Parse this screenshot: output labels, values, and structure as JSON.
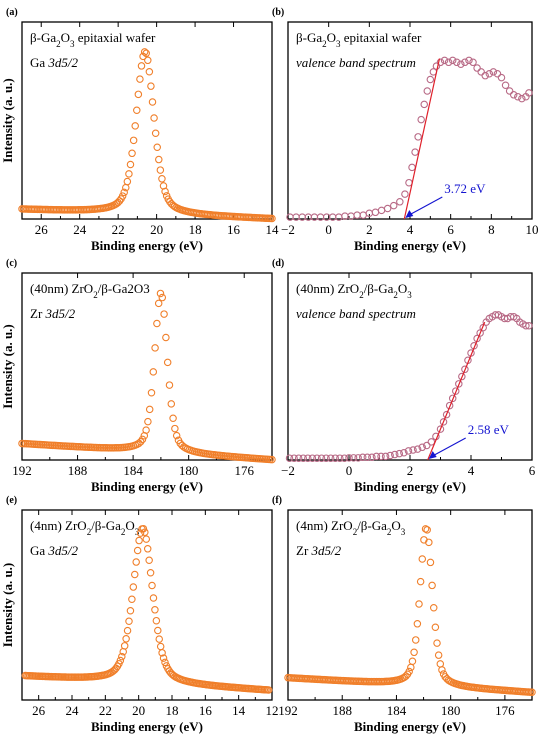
{
  "chart_data": [
    {
      "id": "a",
      "type": "scatter",
      "panel_label": "(a)",
      "annotations": [
        {
          "kind": "formula",
          "pre": "β-Ga",
          "sub1": "2",
          "mid": "O",
          "sub2": "3",
          "post": " epitaxial wafer",
          "row": 0,
          "italic": false
        },
        {
          "kind": "plain",
          "text": "Ga ",
          "italic_text": "3d5/2",
          "row": 1
        }
      ],
      "xlabel": "Binding energy (eV)",
      "ylabel": "Intensity (a. u.)",
      "x_reversed": true,
      "xlim": [
        27,
        14
      ],
      "xticks": [
        26,
        24,
        22,
        20,
        18,
        16,
        14
      ],
      "ylim": [
        0,
        1
      ],
      "marker_color": "#f07f2a",
      "marker_fill": "none",
      "peak": {
        "center": 20.6,
        "height": 0.85,
        "width": 0.55
      },
      "baseline": {
        "start_x": 27,
        "start_y": 0.05,
        "end_x": 14,
        "end_y": 0.0
      },
      "x_range": [
        27,
        14
      ],
      "n_points": 160
    },
    {
      "id": "b",
      "type": "scatter",
      "panel_label": "(b)",
      "annotations": [
        {
          "kind": "formula",
          "pre": "β-Ga",
          "sub1": "2",
          "mid": "O",
          "sub2": "3",
          "post": " epitaxial wafer",
          "row": 0,
          "italic": false
        },
        {
          "kind": "italic",
          "text": "valence band spectrum",
          "row": 1
        }
      ],
      "xlabel": "Binding energy (eV)",
      "ylabel": "",
      "x_reversed": false,
      "xlim": [
        -2,
        10
      ],
      "xticks": [
        -2,
        0,
        2,
        4,
        6,
        8,
        10
      ],
      "ylim": [
        0,
        1
      ],
      "marker_color": "#b86a86",
      "marker_fill": "none",
      "vb": {
        "onset": 3.72,
        "top_x": 5.6,
        "plateau": 0.83,
        "max_x": 9.8
      },
      "points": [
        [
          -1.9,
          0.01
        ],
        [
          -1.6,
          0.01
        ],
        [
          -1.3,
          0.01
        ],
        [
          -1.0,
          0.01
        ],
        [
          -0.7,
          0.01
        ],
        [
          -0.4,
          0.01
        ],
        [
          -0.1,
          0.01
        ],
        [
          0.2,
          0.01
        ],
        [
          0.5,
          0.01
        ],
        [
          0.8,
          0.015
        ],
        [
          1.1,
          0.015
        ],
        [
          1.4,
          0.02
        ],
        [
          1.7,
          0.02
        ],
        [
          2.0,
          0.03
        ],
        [
          2.3,
          0.035
        ],
        [
          2.6,
          0.045
        ],
        [
          2.9,
          0.055
        ],
        [
          3.2,
          0.07
        ],
        [
          3.5,
          0.09
        ],
        [
          3.75,
          0.13
        ],
        [
          3.95,
          0.19
        ],
        [
          4.1,
          0.27
        ],
        [
          4.25,
          0.35
        ],
        [
          4.4,
          0.43
        ],
        [
          4.55,
          0.52
        ],
        [
          4.7,
          0.6
        ],
        [
          4.85,
          0.67
        ],
        [
          5.0,
          0.73
        ],
        [
          5.15,
          0.77
        ],
        [
          5.3,
          0.8
        ],
        [
          5.5,
          0.82
        ],
        [
          5.7,
          0.83
        ],
        [
          5.9,
          0.82
        ],
        [
          6.1,
          0.83
        ],
        [
          6.3,
          0.82
        ],
        [
          6.5,
          0.81
        ],
        [
          6.7,
          0.82
        ],
        [
          6.9,
          0.83
        ],
        [
          7.1,
          0.82
        ],
        [
          7.3,
          0.79
        ],
        [
          7.5,
          0.77
        ],
        [
          7.7,
          0.75
        ],
        [
          7.9,
          0.76
        ],
        [
          8.1,
          0.77
        ],
        [
          8.3,
          0.76
        ],
        [
          8.5,
          0.74
        ],
        [
          8.7,
          0.7
        ],
        [
          8.9,
          0.67
        ],
        [
          9.1,
          0.65
        ],
        [
          9.3,
          0.64
        ],
        [
          9.5,
          0.63
        ],
        [
          9.7,
          0.64
        ],
        [
          9.85,
          0.66
        ]
      ],
      "fit_line": {
        "x1": 3.72,
        "y1": 0.0,
        "x2": 5.45,
        "y2": 0.84
      },
      "callout": {
        "text": "3.72 eV",
        "target_x": 3.72,
        "target_y": 0.0
      }
    },
    {
      "id": "c",
      "type": "scatter",
      "panel_label": "(c)",
      "annotations": [
        {
          "kind": "plain",
          "text": "(40nm) ZrO",
          "sub": "2",
          "post": "/β-Ga2O3",
          "row": 0
        },
        {
          "kind": "italic_prefix",
          "text": "Zr ",
          "italic_text": "3d5/2",
          "row": 1
        }
      ],
      "xlabel": "Binding energy (eV)",
      "ylabel": "Intensity (a. u.)",
      "x_reversed": true,
      "xlim": [
        192,
        174
      ],
      "xticks": [
        192,
        188,
        184,
        180,
        176
      ],
      "ylim": [
        0,
        1
      ],
      "marker_color": "#f07f2a",
      "marker_fill": "none",
      "peak": {
        "center": 182.0,
        "height": 0.88,
        "width": 0.55
      },
      "baseline": {
        "start_x": 192,
        "start_y": 0.09,
        "end_x": 174,
        "end_y": 0.0
      },
      "x_range": [
        192,
        174
      ],
      "n_points": 140
    },
    {
      "id": "d",
      "type": "scatter",
      "panel_label": "(d)",
      "annotations": [
        {
          "kind": "plain",
          "text": "(40nm) ZrO",
          "sub": "2",
          "post": "/β-Ga",
          "sub2": "2",
          "post2": "O",
          "sub3": "3",
          "row": 0
        },
        {
          "kind": "italic",
          "text": "valence band spectrum",
          "row": 1
        }
      ],
      "xlabel": "Binding energy (eV)",
      "ylabel": "",
      "x_reversed": false,
      "xlim": [
        -2,
        6
      ],
      "xticks": [
        -2,
        0,
        2,
        4,
        6
      ],
      "ylim": [
        0,
        1
      ],
      "marker_color": "#b86a86",
      "marker_fill": "none",
      "points": [
        [
          -1.95,
          0.01
        ],
        [
          -1.8,
          0.01
        ],
        [
          -1.65,
          0.01
        ],
        [
          -1.5,
          0.01
        ],
        [
          -1.35,
          0.01
        ],
        [
          -1.2,
          0.01
        ],
        [
          -1.05,
          0.01
        ],
        [
          -0.9,
          0.01
        ],
        [
          -0.75,
          0.01
        ],
        [
          -0.6,
          0.01
        ],
        [
          -0.45,
          0.01
        ],
        [
          -0.3,
          0.01
        ],
        [
          -0.15,
          0.01
        ],
        [
          0.0,
          0.012
        ],
        [
          0.15,
          0.012
        ],
        [
          0.3,
          0.012
        ],
        [
          0.45,
          0.015
        ],
        [
          0.6,
          0.015
        ],
        [
          0.75,
          0.015
        ],
        [
          0.9,
          0.02
        ],
        [
          1.05,
          0.02
        ],
        [
          1.2,
          0.02
        ],
        [
          1.35,
          0.025
        ],
        [
          1.5,
          0.03
        ],
        [
          1.65,
          0.035
        ],
        [
          1.8,
          0.04
        ],
        [
          1.95,
          0.05
        ],
        [
          2.1,
          0.055
        ],
        [
          2.25,
          0.06
        ],
        [
          2.4,
          0.07
        ],
        [
          2.55,
          0.08
        ],
        [
          2.7,
          0.1
        ],
        [
          2.85,
          0.13
        ],
        [
          3.0,
          0.17
        ],
        [
          3.1,
          0.21
        ],
        [
          3.2,
          0.25
        ],
        [
          3.3,
          0.3
        ],
        [
          3.4,
          0.34
        ],
        [
          3.5,
          0.38
        ],
        [
          3.6,
          0.42
        ],
        [
          3.7,
          0.46
        ],
        [
          3.8,
          0.5
        ],
        [
          3.9,
          0.55
        ],
        [
          4.0,
          0.59
        ],
        [
          4.1,
          0.63
        ],
        [
          4.2,
          0.67
        ],
        [
          4.3,
          0.7
        ],
        [
          4.4,
          0.73
        ],
        [
          4.5,
          0.76
        ],
        [
          4.6,
          0.78
        ],
        [
          4.7,
          0.79
        ],
        [
          4.8,
          0.8
        ],
        [
          4.9,
          0.8
        ],
        [
          5.0,
          0.79
        ],
        [
          5.1,
          0.78
        ],
        [
          5.2,
          0.78
        ],
        [
          5.3,
          0.79
        ],
        [
          5.4,
          0.79
        ],
        [
          5.5,
          0.78
        ],
        [
          5.6,
          0.76
        ],
        [
          5.7,
          0.75
        ],
        [
          5.8,
          0.74
        ],
        [
          5.9,
          0.74
        ]
      ],
      "fit_line": {
        "x1": 2.58,
        "y1": 0.0,
        "x2": 4.45,
        "y2": 0.76
      },
      "callout": {
        "text": "2.58 eV",
        "target_x": 2.58,
        "target_y": 0.0
      }
    },
    {
      "id": "e",
      "type": "scatter",
      "panel_label": "(e)",
      "annotations": [
        {
          "kind": "plain",
          "text": "(4nm) ZrO",
          "sub": "2",
          "post": "/β-Ga",
          "sub2": "2",
          "post2": "O",
          "sub3": "3",
          "row": 0
        },
        {
          "kind": "plain",
          "text": "Ga ",
          "italic_text": "3d5/2",
          "row": 1
        }
      ],
      "xlabel": "Binding energy (eV)",
      "ylabel": "Intensity (a. u.)",
      "x_reversed": true,
      "xlim": [
        27,
        12
      ],
      "xticks": [
        26,
        24,
        22,
        20,
        18,
        16,
        14,
        12
      ],
      "ylim": [
        0,
        1
      ],
      "marker_color": "#f07f2a",
      "marker_fill": "none",
      "peak": {
        "center": 19.75,
        "height": 0.84,
        "width": 0.7
      },
      "baseline": {
        "start_x": 27,
        "start_y": 0.13,
        "end_x": 12,
        "end_y": 0.05
      },
      "x_range": [
        26.8,
        12.2
      ],
      "n_points": 170
    },
    {
      "id": "f",
      "type": "scatter",
      "panel_label": "(f)",
      "annotations": [
        {
          "kind": "plain",
          "text": "(4nm) ZrO",
          "sub": "2",
          "post": "/β-Ga",
          "sub2": "2",
          "post2": "O",
          "sub3": "3",
          "row": 0
        },
        {
          "kind": "plain",
          "text": "Zr ",
          "italic_text": "3d5/2",
          "row": 1
        }
      ],
      "xlabel": "Binding energy (eV)",
      "ylabel": "",
      "x_reversed": true,
      "xlim": [
        192,
        174
      ],
      "xticks": [
        192,
        188,
        184,
        180,
        176
      ],
      "ylim": [
        0,
        1
      ],
      "marker_color": "#f07f2a",
      "marker_fill": "none",
      "peak": {
        "center": 181.8,
        "height": 0.86,
        "width": 0.55
      },
      "baseline": {
        "start_x": 192,
        "start_y": 0.12,
        "end_x": 174,
        "end_y": 0.04
      },
      "x_range": [
        192,
        174
      ],
      "n_points": 150
    }
  ]
}
